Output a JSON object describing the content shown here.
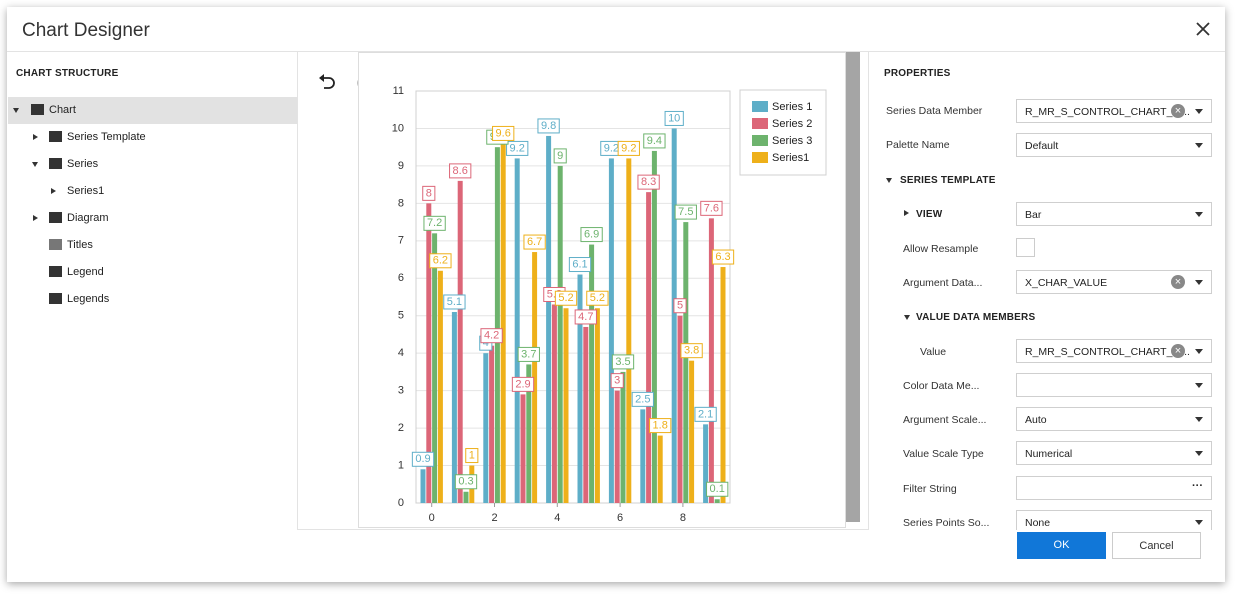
{
  "window": {
    "title": "Chart Designer"
  },
  "structure": {
    "heading": "CHART STRUCTURE",
    "items": [
      "Chart",
      "Series Template",
      "Series",
      "Series1",
      "Diagram",
      "Titles",
      "Legend",
      "Legends"
    ]
  },
  "properties": {
    "heading": "PROPERTIES",
    "sections": [
      "SERIES TEMPLATE",
      "VALUE DATA MEMBERS"
    ],
    "rows": [
      {
        "label": "Series Data Member",
        "value": "R_MR_S_CONTROL_CHART_LI..."
      },
      {
        "label": "Palette Name",
        "value": "Default"
      },
      {
        "label": "VIEW",
        "value": "Bar"
      },
      {
        "label": "Allow Resample"
      },
      {
        "label": "Argument Data...",
        "value": "X_CHAR_VALUE"
      },
      {
        "label": "Value",
        "value": "R_MR_S_CONTROL_CHART_LI..."
      },
      {
        "label": "Color Data Me..."
      },
      {
        "label": "Argument Scale...",
        "value": "Auto"
      },
      {
        "label": "Value Scale Type",
        "value": "Numerical"
      },
      {
        "label": "Filter String"
      },
      {
        "label": "Series Points So...",
        "value": "None"
      }
    ]
  },
  "buttons": {
    "ok": "OK",
    "cancel": "Cancel"
  },
  "chart_data": {
    "type": "bar",
    "x": [
      0,
      1,
      2,
      3,
      4,
      5,
      6,
      7,
      8,
      9
    ],
    "xlim": [
      -0.5,
      9.5
    ],
    "xticks": [
      0,
      2,
      4,
      6,
      8
    ],
    "ylim": [
      0,
      11
    ],
    "yticks": [
      0,
      1,
      2,
      3,
      4,
      5,
      6,
      7,
      8,
      9,
      10,
      11
    ],
    "grid": true,
    "series": [
      {
        "name": "Series 1",
        "color": "#5eaec8",
        "values": [
          0.9,
          5.1,
          4,
          9.2,
          9.8,
          6.1,
          9.2,
          2.5,
          10,
          2.1
        ]
      },
      {
        "name": "Series 2",
        "color": "#dc6678",
        "values": [
          8,
          8.6,
          4.2,
          2.9,
          5.3,
          4.7,
          3,
          8.3,
          5,
          7.6
        ]
      },
      {
        "name": "Series 3",
        "color": "#6db36d",
        "values": [
          7.2,
          0.3,
          9.5,
          3.7,
          9,
          6.9,
          3.5,
          9.4,
          7.5,
          0.1
        ]
      },
      {
        "name": "Series1",
        "color": "#eeb01a",
        "values": [
          6.2,
          1,
          9.6,
          6.7,
          5.2,
          5.2,
          9.2,
          1.8,
          3.8,
          6.3
        ]
      }
    ]
  }
}
